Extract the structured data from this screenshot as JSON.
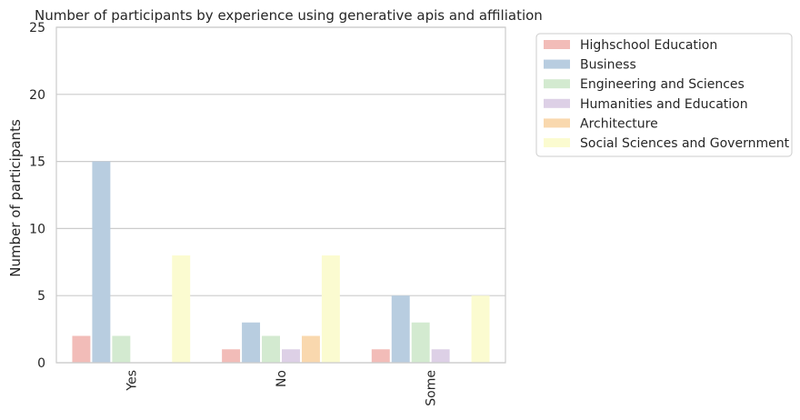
{
  "chart_data": {
    "type": "bar",
    "title": "Number of participants by experience using generative apis and affiliation",
    "xlabel": "",
    "ylabel": "Number of participants",
    "ylim": [
      0,
      25
    ],
    "yticks": [
      0,
      5,
      10,
      15,
      20,
      25
    ],
    "grid": true,
    "legend_position": "outside-right",
    "categories": [
      "Yes",
      "No",
      "Some"
    ],
    "series": [
      {
        "name": "Highschool Education",
        "color": "#f2bcb8",
        "values": [
          2,
          1,
          1
        ]
      },
      {
        "name": "Business",
        "color": "#b8cde0",
        "values": [
          15,
          3,
          5
        ]
      },
      {
        "name": "Engineering and Sciences",
        "color": "#d3ead0",
        "values": [
          2,
          2,
          3
        ]
      },
      {
        "name": "Humanities and Education",
        "color": "#ddd0e6",
        "values": [
          0,
          1,
          1
        ]
      },
      {
        "name": "Architecture",
        "color": "#f9d8ae",
        "values": [
          0,
          2,
          0
        ]
      },
      {
        "name": "Social Sciences and Government",
        "color": "#fbfbd0",
        "values": [
          8,
          8,
          5
        ]
      }
    ]
  }
}
